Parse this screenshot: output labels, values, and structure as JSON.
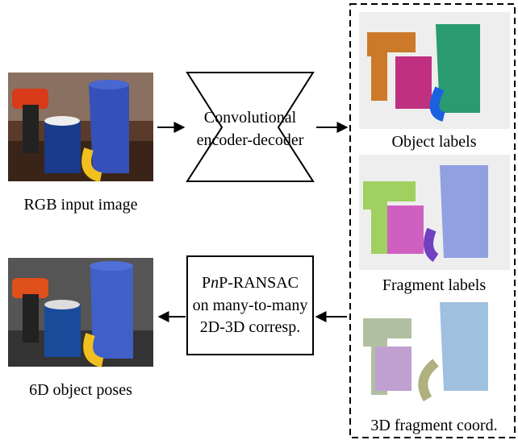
{
  "input": {
    "label": "RGB input image"
  },
  "encoder": {
    "lines": [
      "Convolutional",
      "encoder-decoder"
    ]
  },
  "outputs": [
    {
      "label": "Object labels"
    },
    {
      "label": "Fragment labels"
    },
    {
      "label": "3D fragment coord."
    }
  ],
  "pnp": {
    "title": [
      "P",
      "n",
      "P-RANSAC"
    ],
    "lines": [
      "on many-to-many",
      "2D-3D corresp."
    ]
  },
  "result": {
    "label": "6D object poses"
  }
}
